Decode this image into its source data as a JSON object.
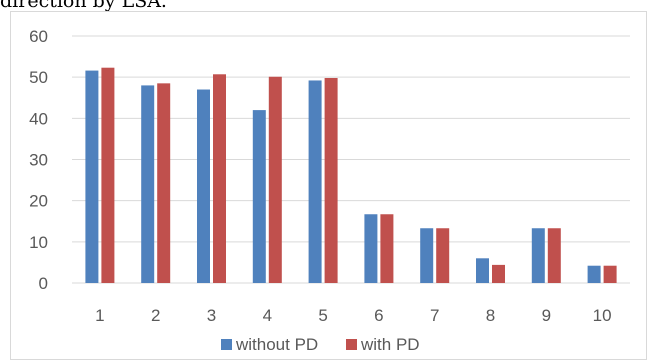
{
  "page": {
    "caption_fragment": "direction by LSA."
  },
  "chart_data": {
    "type": "bar",
    "categories": [
      "1",
      "2",
      "3",
      "4",
      "5",
      "6",
      "7",
      "8",
      "9",
      "10"
    ],
    "series": [
      {
        "name": "without PD",
        "color": "#4f81bd",
        "values": [
          51.6,
          48.0,
          47.0,
          42.0,
          49.2,
          16.7,
          13.3,
          6.0,
          13.3,
          4.2
        ]
      },
      {
        "name": "with PD",
        "color": "#c0504d",
        "values": [
          52.3,
          48.5,
          50.7,
          50.1,
          49.8,
          16.7,
          13.3,
          4.4,
          13.3,
          4.2
        ]
      }
    ],
    "title": "",
    "xlabel": "",
    "ylabel": "",
    "ylim": [
      0,
      60
    ],
    "yticks": [
      0,
      10,
      20,
      30,
      40,
      50,
      60
    ],
    "grid": true,
    "legend_position": "bottom"
  }
}
